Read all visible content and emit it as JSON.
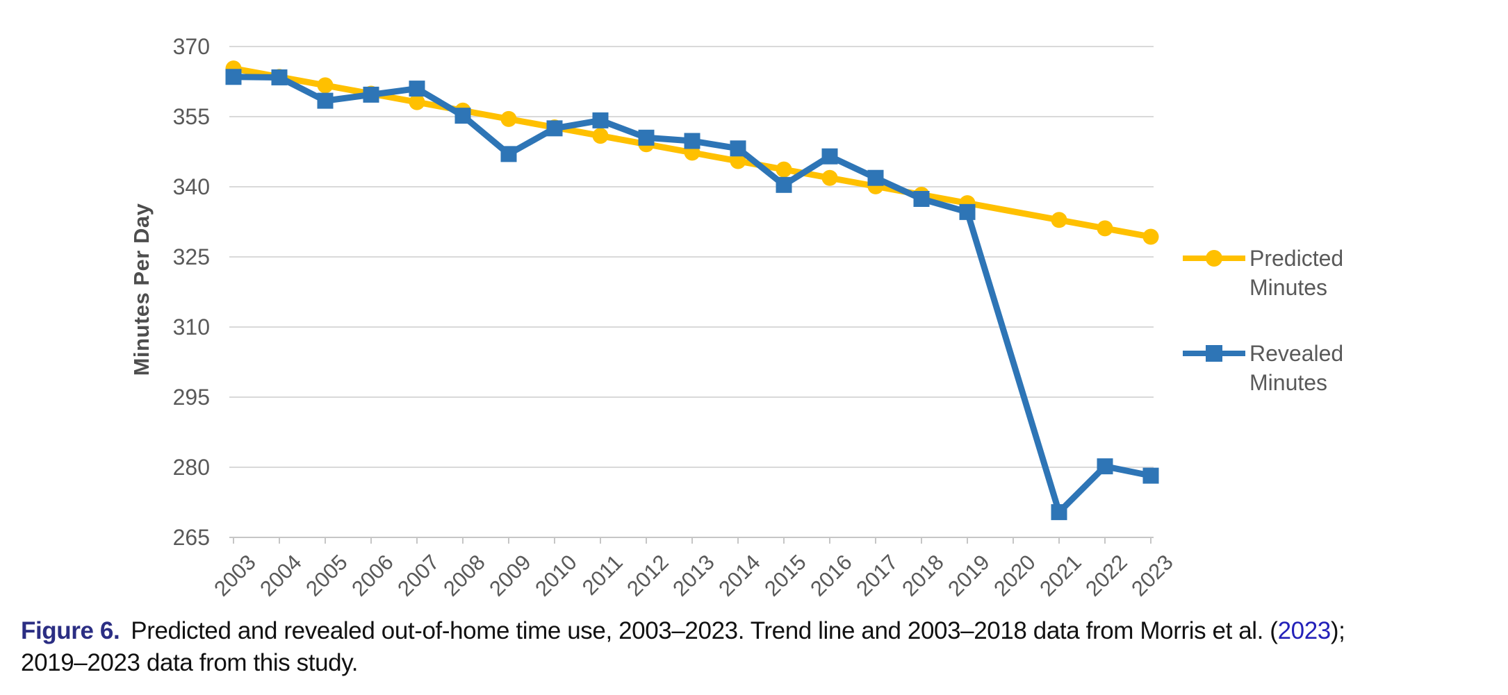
{
  "chart_data": {
    "type": "line",
    "title": "",
    "xlabel": "",
    "ylabel": "Minutes Per Day",
    "ylim": [
      265,
      370
    ],
    "yticks": [
      265,
      280,
      295,
      310,
      325,
      340,
      355,
      370
    ],
    "grid": true,
    "legend_position": "right",
    "categories": [
      "2003",
      "2004",
      "2005",
      "2006",
      "2007",
      "2008",
      "2009",
      "2010",
      "2011",
      "2012",
      "2013",
      "2014",
      "2015",
      "2016",
      "2017",
      "2018",
      "2019",
      "2020",
      "2021",
      "2022",
      "2023"
    ],
    "marker_skip_categories": [
      "2020"
    ],
    "series": [
      {
        "name": "Predicted Minutes",
        "color": "#FFC000",
        "marker": "circle",
        "values": [
          365.3,
          363.5,
          361.7,
          359.9,
          358.1,
          356.3,
          354.5,
          352.7,
          350.9,
          349.1,
          347.3,
          345.5,
          343.7,
          341.9,
          340.1,
          338.3,
          336.5,
          334.7,
          332.9,
          331.1,
          329.3
        ]
      },
      {
        "name": "Revealed Minutes",
        "color": "#2E75B6",
        "marker": "square",
        "values": [
          363.5,
          363.4,
          358.4,
          359.7,
          361.0,
          355.2,
          347.0,
          352.5,
          354.2,
          350.5,
          349.8,
          348.2,
          340.4,
          346.5,
          341.9,
          337.4,
          334.6,
          null,
          270.4,
          280.2,
          278.2
        ]
      }
    ]
  },
  "legend": {
    "items": [
      {
        "line1": "Predicted",
        "line2": "Minutes",
        "color": "#FFC000",
        "marker": "circle"
      },
      {
        "line1": "Revealed",
        "line2": "Minutes",
        "color": "#2E75B6",
        "marker": "square"
      }
    ]
  },
  "caption": {
    "label": "Figure 6.",
    "text1": "Predicted and revealed out-of-home time use, 2003–2023. Trend line and 2003–2018 data from Morris et al. (",
    "link": "2023",
    "text2": ");",
    "line2": "2019–2023 data from this study."
  },
  "colors": {
    "predicted": "#FFC000",
    "revealed": "#2E75B6",
    "grid": "#D9D9D9",
    "axis": "#C6C6C6",
    "tick_text": "#595959",
    "axis_title": "#4D4D4D",
    "caption_text": "#111111",
    "caption_label": "#2B2E83",
    "caption_link": "#2321B9"
  }
}
